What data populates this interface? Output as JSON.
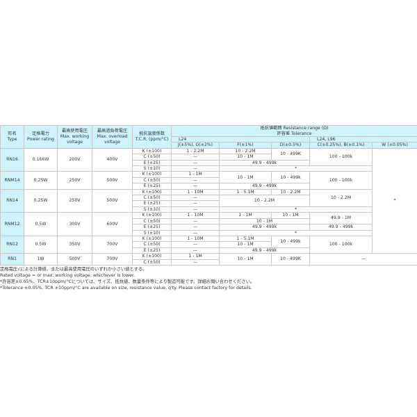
{
  "header": {
    "type": [
      "形名",
      "Type"
    ],
    "power": [
      "定格電力",
      "Power rating"
    ],
    "working": [
      "最高使用電圧",
      "Max. working",
      "voltage"
    ],
    "overload": [
      "最高過負荷電圧",
      "Max. overload",
      "voltage"
    ],
    "tcr": [
      "抵抗温度係数",
      "T.C.R. (ppm/°C)"
    ],
    "range": [
      "抵抗値範囲 Resistance range (Ω)",
      "許容差 Tolerance"
    ],
    "series_l24": "L24",
    "series_l24_l96": "L24, L96",
    "tolerances": [
      "J(±5%), G(±2%)",
      "F(±1%)",
      "D(±0.5%)",
      "C(±0.25%), B(±0.1%)",
      "W (±0.05%)"
    ]
  },
  "groups": [
    {
      "type": "RN16",
      "power": "0.166W",
      "working": "200V",
      "overload": "400V",
      "rows": [
        {
          "tcr": "K (±100)",
          "cells": [
            {
              "v": "1 - 2.2M"
            },
            {
              "v": "10 - 2.2M"
            },
            {
              "v": "10 - 499K",
              "rs": 2
            },
            {
              "v": "100 - 100k",
              "rs": 3
            },
            {
              "v": "*",
              "rs": 18
            }
          ]
        },
        {
          "tcr": "C (±50)",
          "cells": [
            {
              "v": "—"
            },
            {
              "v": "10 - 1M"
            }
          ]
        },
        {
          "tcr": "E (±25)",
          "cells": [
            {
              "v": "—"
            },
            {
              "v": "49.9 - 499k",
              "cs": 2
            }
          ]
        },
        {
          "tcr": "S (±10)",
          "cells": [
            {
              "v": "—"
            },
            {
              "v": "*",
              "cs": 3
            }
          ]
        }
      ]
    },
    {
      "type": "RNM14",
      "power": "0.25W",
      "working": "250V",
      "overload": "500V",
      "rows": [
        {
          "tcr": "K (±100)",
          "cells": [
            {
              "v": "1 - 1M"
            },
            {
              "v": "10 - 1M",
              "rs": 2
            },
            {
              "v": "10 - 499k",
              "rs": 2
            },
            {
              "v": "100 - 100k",
              "rs": 3
            }
          ]
        },
        {
          "tcr": "C (±50)",
          "cells": [
            {
              "v": "—"
            }
          ]
        },
        {
          "tcr": "E (±25)",
          "cells": [
            {
              "v": "—"
            },
            {
              "v": "49.9 - 499k",
              "cs": 2
            }
          ]
        }
      ]
    },
    {
      "type": "RN14",
      "power": "0.25W",
      "working": "250V",
      "overload": "500V",
      "rows": [
        {
          "tcr": "K (±100)",
          "cells": [
            {
              "v": "1 - 10M"
            },
            {
              "v": "1 - 5.1M"
            },
            {
              "v": "10 - 2.2M"
            },
            {
              "v": "10 - 2.2M",
              "rs": 3
            }
          ]
        },
        {
          "tcr": "C (±50)",
          "cells": [
            {
              "v": "—"
            },
            {
              "v": "10 - 2.2M",
              "cs": 2,
              "rs": 2
            }
          ]
        },
        {
          "tcr": "E (±25)",
          "cells": [
            {
              "v": "—"
            }
          ]
        },
        {
          "tcr": "S (±10)",
          "cells": [
            {
              "v": "—"
            },
            {
              "v": "*",
              "cs": 3
            }
          ]
        }
      ]
    },
    {
      "type": "RNM12",
      "power": "0.5W",
      "working": "300V",
      "overload": "600V",
      "rows": [
        {
          "tcr": "K (±100)",
          "cells": [
            {
              "v": "1 - 10M"
            },
            {
              "v": "1 - 1M"
            },
            {
              "v": "10 - 1M"
            },
            {
              "v": "49.9 - 1M",
              "rs": 2
            }
          ]
        },
        {
          "tcr": "C (±50)",
          "cells": [
            {
              "v": "—"
            },
            {
              "v": "10 - 1M",
              "cs": 2
            }
          ]
        },
        {
          "tcr": "E (±25)",
          "cells": [
            {
              "v": "—"
            },
            {
              "v": "49.9 - 499k",
              "cs": 2
            },
            {
              "v": "49.9 - 499k"
            }
          ]
        },
        {
          "tcr": "S (±10)",
          "cells": [
            {
              "v": "—"
            },
            {
              "v": "*",
              "cs": 3
            }
          ]
        }
      ]
    },
    {
      "type": "RN12",
      "power": "0.5W",
      "working": "350V",
      "overload": "700V",
      "rows": [
        {
          "tcr": "K (±100)",
          "cells": [
            {
              "v": "1 - 10M"
            },
            {
              "v": "1 - 5.1M"
            },
            {
              "v": "10 - 499k",
              "rs": 2
            },
            {
              "v": "100 - 100k",
              "rs": 3
            }
          ]
        },
        {
          "tcr": "C (±50)",
          "cells": [
            {
              "v": "—"
            },
            {
              "v": "10 - 1M"
            }
          ]
        },
        {
          "tcr": "E (±25)",
          "cells": [
            {
              "v": "—"
            },
            {
              "v": "49.9 - 499k",
              "cs": 2
            }
          ]
        }
      ]
    },
    {
      "type": "RN1",
      "power": "1W",
      "working": "500V",
      "overload": "700V",
      "rows": [
        {
          "tcr": "K (±100)",
          "cells": [
            {
              "v": "1 - 1M"
            },
            {
              "v": "10 - 1M",
              "rs": 2
            },
            {
              "v": "10 - 499K",
              "rs": 2
            },
            {
              "v": "—",
              "cs": 2,
              "rs": 2
            }
          ]
        },
        {
          "tcr": "C (±50)",
          "cells": [
            {
              "v": "—"
            }
          ]
        }
      ]
    }
  ],
  "notes": [
    "定格電圧√による計算値、または最高使用電圧のいずれか小さい値とする。",
    "Rated voltage = or max. working voltage, whichever is lower.",
    "*許容差±0.05%、TCR±10ppm/°Cについては、サイズ、抵抗値、数量条件等により製造可能です。詳細お問い合わせください。",
    "*Tolerance ±0.05%, TCR ±10ppm/°C are available on size, resistance value, q'ty. Please contact factory for details."
  ]
}
